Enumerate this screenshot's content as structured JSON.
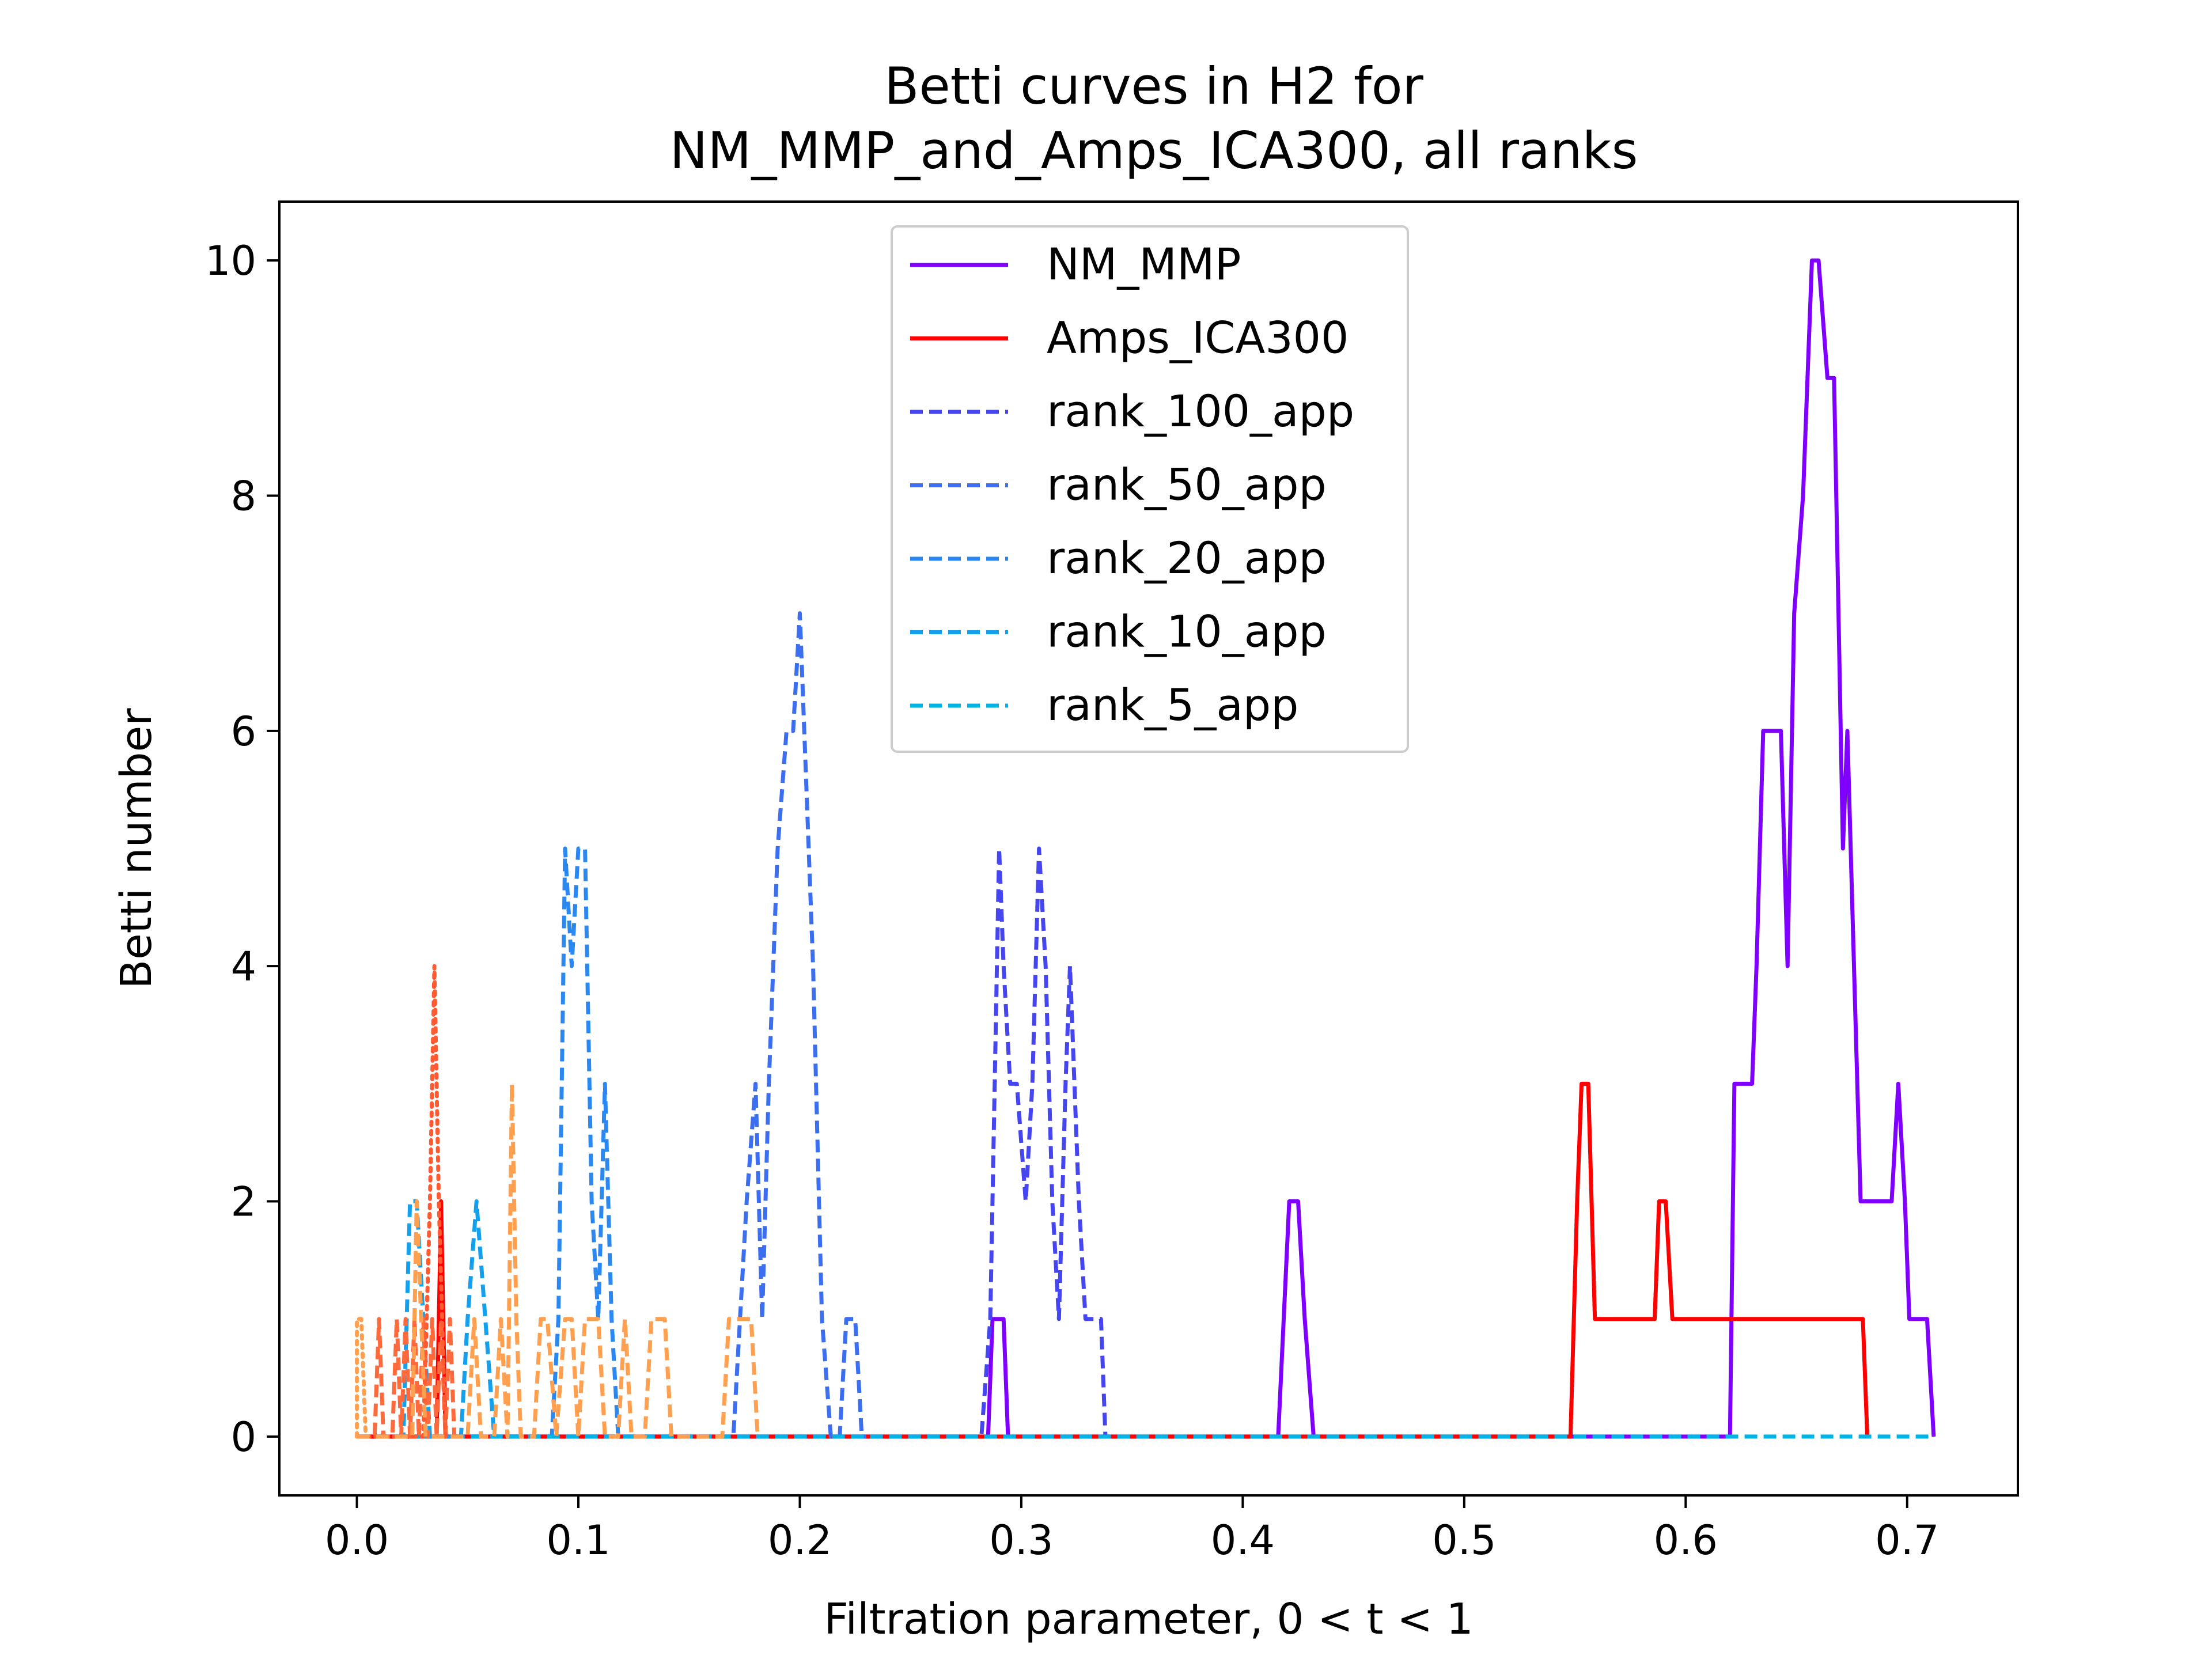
{
  "chart_data": {
    "type": "line",
    "title": [
      "Betti curves in H2 for",
      "NM_MMP_and_Amps_ICA300, all ranks"
    ],
    "xlabel": "Filtration parameter, 0 < t < 1",
    "ylabel": "Betti number",
    "xlim": [
      -0.035,
      0.75
    ],
    "ylim": [
      -0.5,
      10.5
    ],
    "xticks": [
      0.0,
      0.1,
      0.2,
      0.3,
      0.4,
      0.5,
      0.6,
      0.7
    ],
    "xtick_labels": [
      "0.0",
      "0.1",
      "0.2",
      "0.3",
      "0.4",
      "0.5",
      "0.6",
      "0.7"
    ],
    "yticks": [
      0,
      2,
      4,
      6,
      8,
      10
    ],
    "ytick_labels": [
      "0",
      "2",
      "4",
      "6",
      "8",
      "10"
    ],
    "grid": false,
    "legend_position": "top-center",
    "series": [
      {
        "name": "NM_MMP",
        "color": "#7f00ff",
        "dash": "solid",
        "in_legend": true,
        "x": [
          0.0,
          0.285,
          0.287,
          0.292,
          0.294,
          0.416,
          0.421,
          0.425,
          0.428,
          0.432,
          0.62,
          0.622,
          0.63,
          0.632,
          0.635,
          0.643,
          0.646,
          0.649,
          0.653,
          0.657,
          0.66,
          0.664,
          0.667,
          0.671,
          0.673,
          0.676,
          0.679,
          0.682,
          0.684,
          0.693,
          0.696,
          0.699,
          0.701,
          0.706,
          0.709,
          0.712
        ],
        "y": [
          0,
          0,
          1,
          1,
          0,
          0,
          2,
          2,
          1,
          0,
          0,
          3,
          3,
          4,
          6,
          6,
          4,
          7,
          8,
          10,
          10,
          9,
          9,
          5,
          6,
          4,
          2,
          2,
          2,
          2,
          3,
          2,
          1,
          1,
          1,
          0
        ]
      },
      {
        "name": "Amps_ICA300",
        "color": "#ff0000",
        "dash": "solid",
        "in_legend": true,
        "x": [
          0.0,
          0.036,
          0.038,
          0.04,
          0.548,
          0.551,
          0.553,
          0.556,
          0.559,
          0.586,
          0.588,
          0.591,
          0.594,
          0.68,
          0.682
        ],
        "y": [
          0,
          0,
          2,
          0,
          0,
          2,
          3,
          3,
          1,
          1,
          2,
          2,
          1,
          1,
          0
        ]
      },
      {
        "name": "rank_100_app",
        "color": "#4646f0",
        "dash": "dashed",
        "in_legend": true,
        "x": [
          0.0,
          0.282,
          0.286,
          0.29,
          0.292,
          0.295,
          0.298,
          0.302,
          0.305,
          0.308,
          0.311,
          0.314,
          0.317,
          0.32,
          0.322,
          0.326,
          0.329,
          0.333,
          0.336,
          0.338,
          0.34
        ],
        "y": [
          0,
          0,
          1,
          5,
          4,
          3,
          3,
          2,
          3,
          5,
          4,
          2,
          1,
          3,
          4,
          2,
          1,
          1,
          1,
          0,
          0
        ]
      },
      {
        "name": "rank_50_app",
        "color": "#3c6ef0",
        "dash": "dashed",
        "in_legend": true,
        "x": [
          0.0,
          0.17,
          0.176,
          0.18,
          0.183,
          0.186,
          0.19,
          0.194,
          0.197,
          0.2,
          0.202,
          0.206,
          0.21,
          0.214,
          0.218,
          0.221,
          0.225,
          0.228,
          0.23
        ],
        "y": [
          0,
          0,
          2,
          3,
          1,
          3,
          5,
          6,
          6,
          7,
          6,
          4,
          1,
          0,
          0,
          1,
          1,
          0,
          0
        ]
      },
      {
        "name": "rank_20_app",
        "color": "#2a88f0",
        "dash": "dashed",
        "in_legend": true,
        "x": [
          0.0,
          0.088,
          0.091,
          0.094,
          0.097,
          0.1,
          0.103,
          0.106,
          0.109,
          0.112,
          0.115,
          0.118,
          0.121
        ],
        "y": [
          0,
          0,
          1,
          5,
          4,
          5,
          5,
          2,
          1,
          3,
          1,
          0,
          0
        ]
      },
      {
        "name": "rank_10_app",
        "color": "#14a0ec",
        "dash": "dashed",
        "in_legend": true,
        "x": [
          0.0,
          0.021,
          0.024,
          0.027,
          0.03,
          0.033,
          0.047,
          0.05,
          0.054,
          0.058,
          0.062
        ],
        "y": [
          0,
          0,
          2,
          2,
          1,
          0,
          0,
          1,
          2,
          1,
          0
        ]
      },
      {
        "name": "rank_5_app",
        "color": "#00b4e6",
        "dash": "dashed",
        "in_legend": true,
        "x": [
          0.0,
          0.712
        ],
        "y": [
          0,
          0
        ]
      },
      {
        "name": "",
        "color": "#ff6a3c",
        "dash": "dashed",
        "in_legend": false,
        "x": [
          0.0,
          0.008,
          0.01,
          0.012,
          0.016,
          0.018,
          0.02,
          0.022,
          0.024,
          0.026,
          0.028,
          0.03,
          0.032,
          0.034,
          0.036,
          0.038,
          0.04,
          0.042,
          0.044,
          0.046
        ],
        "y": [
          0,
          0,
          1,
          0,
          0,
          1,
          0,
          1,
          0,
          1,
          0,
          1,
          0,
          1,
          0,
          1,
          0,
          1,
          0,
          0
        ]
      },
      {
        "name": "",
        "color": "#ff5a32",
        "dash": "dotted",
        "in_legend": false,
        "x": [
          0.0,
          0.03,
          0.033,
          0.035,
          0.037,
          0.04
        ],
        "y": [
          0,
          0,
          2,
          4,
          2,
          0
        ]
      },
      {
        "name": "",
        "color": "#ffa050",
        "dash": "dashed",
        "in_legend": false,
        "x": [
          0.0,
          0.025,
          0.027,
          0.029,
          0.031,
          0.05,
          0.053,
          0.056,
          0.062,
          0.065,
          0.068,
          0.07,
          0.072,
          0.074,
          0.08,
          0.083,
          0.086,
          0.09,
          0.094,
          0.097,
          0.1,
          0.103,
          0.106,
          0.109,
          0.112,
          0.118,
          0.121,
          0.124,
          0.13,
          0.133,
          0.136,
          0.139,
          0.142,
          0.165,
          0.168,
          0.172,
          0.175,
          0.178,
          0.181
        ],
        "y": [
          0,
          0,
          2,
          1,
          0,
          0,
          1,
          0,
          0,
          1,
          0,
          3,
          1,
          0,
          0,
          1,
          1,
          0,
          1,
          1,
          0,
          1,
          1,
          1,
          0,
          0,
          1,
          0,
          0,
          1,
          1,
          1,
          0,
          0,
          1,
          1,
          1,
          1,
          0
        ]
      },
      {
        "name": "",
        "color": "#ffa050",
        "dash": "dotted",
        "in_legend": false,
        "x": [
          0.0,
          0.0,
          0.002,
          0.004
        ],
        "y": [
          0,
          1,
          1,
          0
        ]
      }
    ]
  }
}
